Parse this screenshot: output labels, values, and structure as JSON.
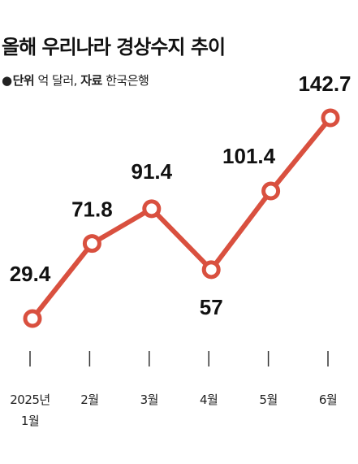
{
  "title": "올해 우리나라 경상수지 추이",
  "meta": {
    "bullet": "●",
    "unit_key": "단위",
    "unit_value": "억 달러,",
    "source_key": "자료",
    "source_value": "한국은행"
  },
  "colors": {
    "line": "#d9503f",
    "marker_fill": "#ffffff",
    "text": "#111111"
  },
  "chart_data": {
    "type": "line",
    "title": "올해 우리나라 경상수지 추이",
    "categories": [
      [
        "2025년",
        "1월"
      ],
      [
        "2월"
      ],
      [
        "3월"
      ],
      [
        "4월"
      ],
      [
        "5월"
      ],
      [
        "6월"
      ]
    ],
    "values": [
      29.4,
      71.8,
      91.4,
      57,
      101.4,
      142.7
    ],
    "value_labels": [
      "29.4",
      "71.8",
      "91.4",
      "57",
      "101.4",
      "142.7"
    ],
    "unit": "억 달러",
    "source": "한국은행",
    "xlabel": "",
    "ylabel": "",
    "grid": false,
    "legend": "none"
  }
}
